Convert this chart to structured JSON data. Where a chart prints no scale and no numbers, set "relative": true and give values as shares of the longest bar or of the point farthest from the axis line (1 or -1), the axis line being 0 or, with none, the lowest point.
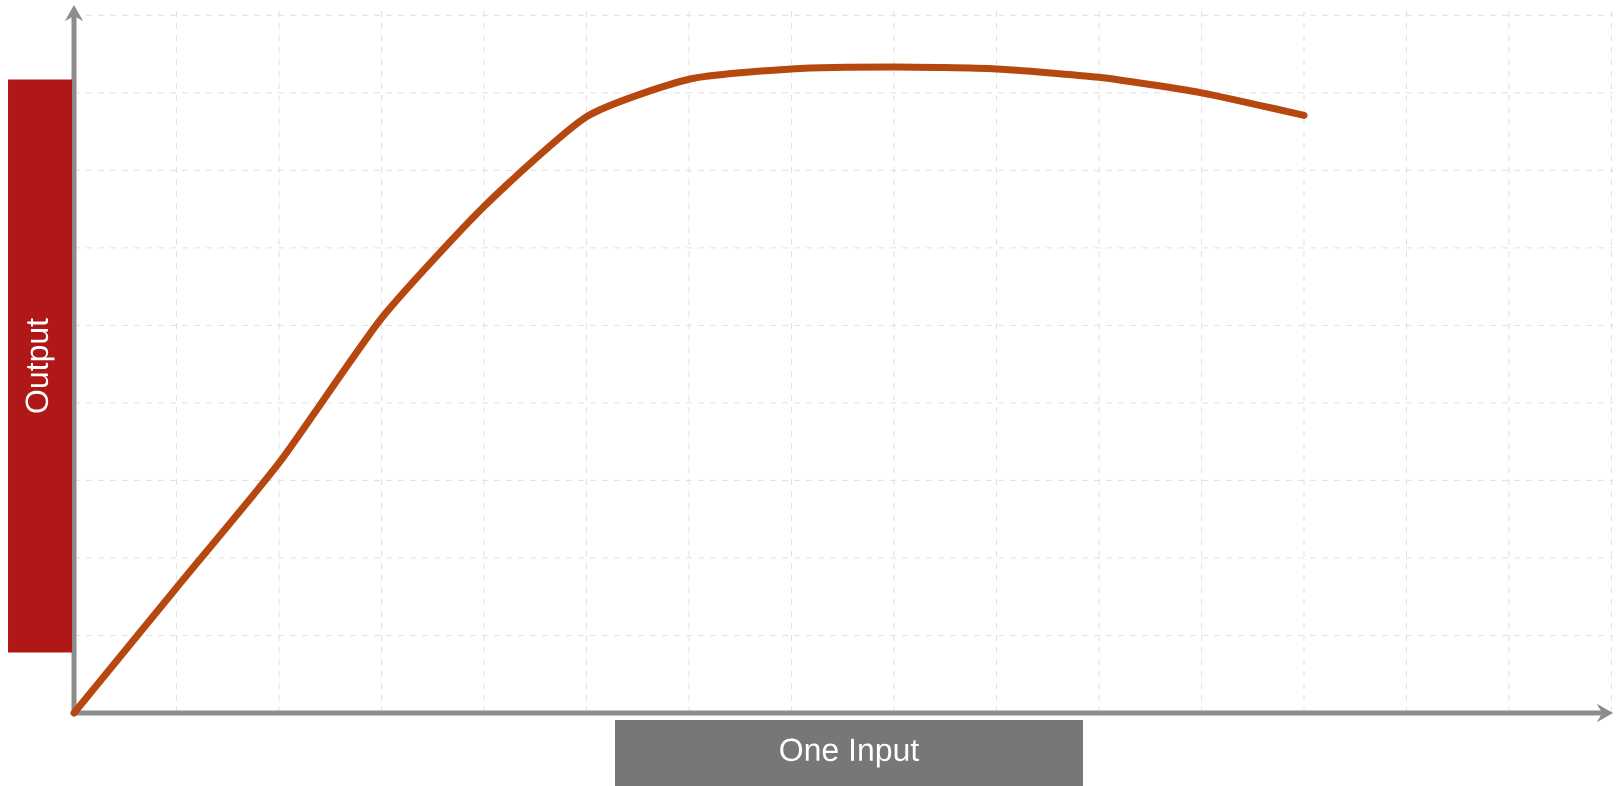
{
  "chart_data": {
    "type": "line",
    "relative": true,
    "xlabel": "One Input",
    "ylabel": "Output",
    "categories": [
      null,
      null,
      null,
      null,
      null,
      null,
      null,
      null,
      null,
      null,
      null,
      null,
      null
    ],
    "series": [
      {
        "color": "#b5470f",
        "values": [
          0,
          0.194,
          0.387,
          0.611,
          0.784,
          0.923,
          0.981,
          0.997,
          1.0,
          0.997,
          0.984,
          0.96,
          0.925
        ]
      }
    ],
    "grid": true,
    "marker": "none",
    "line_style": "solid"
  }
}
